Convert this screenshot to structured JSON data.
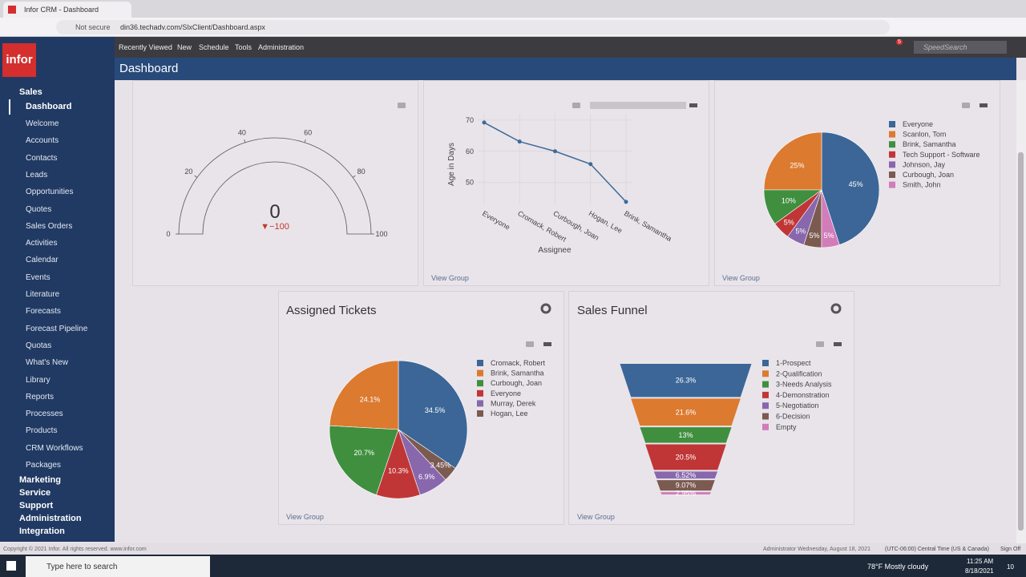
{
  "browser": {
    "tab_title": "Infor CRM - Dashboard",
    "security": "Not secure",
    "url": "din36.techadv.com/SlxClient/Dashboard.aspx"
  },
  "app": {
    "logo": "infor",
    "nav": [
      "Recently Viewed",
      "New",
      "Schedule",
      "Tools",
      "Administration"
    ],
    "notification_count": "5",
    "search_placeholder": "SpeedSearch",
    "page_title": "Dashboard"
  },
  "sidebar": {
    "section": "Sales",
    "items": [
      "Dashboard",
      "Welcome",
      "Accounts",
      "Contacts",
      "Leads",
      "Opportunities",
      "Quotes",
      "Sales Orders",
      "Activities",
      "Calendar",
      "Events",
      "Literature",
      "Forecasts",
      "Forecast Pipeline",
      "Quotas",
      "What's New",
      "Library",
      "Reports",
      "Processes",
      "Products",
      "CRM Workflows",
      "Packages"
    ],
    "sections": [
      "Marketing",
      "Service",
      "Support",
      "Administration",
      "Integration"
    ]
  },
  "widgets": {
    "gauge": {
      "type": "gauge",
      "value": 0,
      "delta_label": "▼−100",
      "range": [
        0,
        100
      ],
      "ticks": [
        0,
        20,
        40,
        60,
        80,
        100
      ]
    },
    "age_chart": {
      "type": "line",
      "categories": [
        "Everyone",
        "Cromack, Robert",
        "Curbough, Joan",
        "Hogan, Lee",
        "Brink, Samantha"
      ],
      "values": [
        69.2,
        63.1,
        60,
        55.9,
        43.8
      ],
      "ylim": [
        43,
        72
      ],
      "yticks": [
        50,
        60,
        70
      ],
      "y_label": "Age in Days",
      "x_label": "Assignee",
      "color": "#3d6a99",
      "grid": true,
      "link": "View Group"
    },
    "owner_pie": {
      "type": "pie",
      "labels": [
        "Everyone",
        "Scanlon, Tom",
        "Brink, Samantha",
        "Tech Support - Software",
        "Johnson, Jay",
        "Curbough, Joan",
        "Smith, John"
      ],
      "values": [
        45,
        25,
        10,
        5,
        5,
        5,
        5
      ],
      "value_labels": [
        "45%",
        "25%",
        "10%",
        "5%",
        "5%",
        "5%",
        "5%"
      ],
      "colors": [
        "#3b6697",
        "#dc7a30",
        "#3f8f3f",
        "#c03636",
        "#8867ad",
        "#7b5a50",
        "#d27cba"
      ],
      "link": "View Group"
    },
    "assigned_tickets": {
      "type": "pie",
      "title": "Assigned Tickets",
      "labels": [
        "Cromack, Robert",
        "Brink, Samantha",
        "Curbough, Joan",
        "Everyone",
        "Murray, Derek",
        "Hogan, Lee"
      ],
      "values": [
        34.5,
        24.1,
        20.7,
        10.3,
        6.9,
        3.45
      ],
      "value_labels": [
        "34.5%",
        "24.1%",
        "20.7%",
        "10.3%",
        "6.9%",
        "3.45%"
      ],
      "colors": [
        "#3b6697",
        "#dc7a30",
        "#3f8f3f",
        "#c03636",
        "#8867ad",
        "#7b5a50"
      ],
      "link": "View Group"
    },
    "sales_funnel": {
      "type": "funnelarea",
      "title": "Sales Funnel",
      "labels": [
        "1-Prospect",
        "2-Qualification",
        "3-Needs Analysis",
        "4-Demonstration",
        "5-Negotiation",
        "6-Decision",
        "Empty"
      ],
      "values": [
        26.3,
        21.6,
        13,
        20.5,
        6.52,
        9.07,
        2.95
      ],
      "value_labels": [
        "26.3%",
        "21.6%",
        "13%",
        "20.5%",
        "6.52%",
        "9.07%",
        "2.95%"
      ],
      "colors": [
        "#3b6697",
        "#dc7a30",
        "#3f8f3f",
        "#c03636",
        "#8867ad",
        "#7b5a50",
        "#d27cba"
      ],
      "link": "View Group"
    }
  },
  "footer": {
    "copyright": "Copyright © 2021 Infor. All rights reserved. www.infor.com",
    "user": "Administrator Wednesday, August 18, 2021",
    "timezone": "(UTC-06:00) Central Time (US & Canada)",
    "sign_off": "Sign Off"
  },
  "taskbar": {
    "search": "Type here to search",
    "weather": "78°F  Mostly cloudy",
    "time": "11:25 AM",
    "date": "8/18/2021",
    "notifications": "10"
  }
}
